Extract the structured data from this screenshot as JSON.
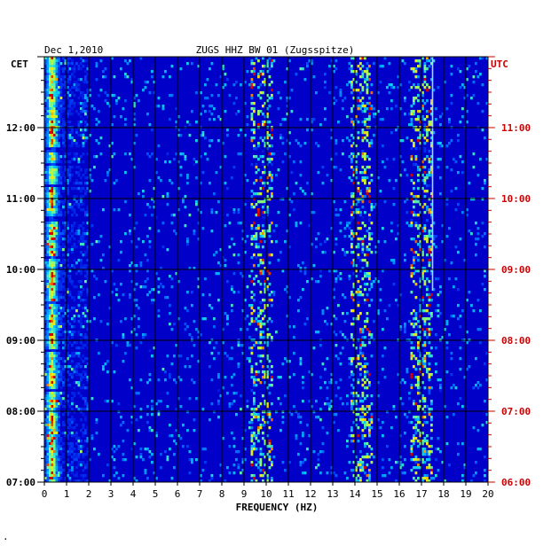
{
  "header": {
    "date": "Dec 1,2010",
    "station": "ZUGS HHZ BW 01 (Zugsspitze)"
  },
  "axes": {
    "left_zone": "CET",
    "right_zone": "UTC",
    "xlabel": "FREQUENCY (HZ)"
  },
  "colors": {
    "background_field": "#0000c8",
    "left_time_labels": "#000000",
    "right_time_labels": "#cc0000",
    "grid": "#000000"
  },
  "footer_mark": "·",
  "chart_data": {
    "type": "heatmap",
    "title": "ZUGS HHZ BW 01 (Zugsspitze)",
    "date": "Dec 1,2010",
    "xlabel": "FREQUENCY (HZ)",
    "x_ticks": [
      "0",
      "1",
      "2",
      "3",
      "4",
      "5",
      "6",
      "7",
      "8",
      "9",
      "10",
      "11",
      "12",
      "13",
      "14",
      "15",
      "16",
      "17",
      "18",
      "19",
      "20"
    ],
    "xlim": [
      0,
      20
    ],
    "y_ticks_cet": [
      "07:00",
      "08:00",
      "09:00",
      "10:00",
      "11:00",
      "12:00"
    ],
    "y_ticks_utc": [
      "06:00",
      "07:00",
      "08:00",
      "09:00",
      "10:00",
      "11:00"
    ],
    "ylim_cet_hours": [
      7.0,
      13.0
    ],
    "grid": true,
    "features": [
      {
        "name": "low-frequency microseism band",
        "freq_hz": [
          0.1,
          0.8
        ],
        "intensity": "high"
      },
      {
        "name": "persistent narrow line",
        "freq_hz": 17.5,
        "intensity": "medium"
      },
      {
        "name": "spectral peak cluster",
        "freq_hz": 9.8,
        "intensity": "medium"
      },
      {
        "name": "spectral peak cluster",
        "freq_hz": 14.3,
        "intensity": "medium"
      },
      {
        "name": "spectral peak cluster",
        "freq_hz": 17.0,
        "intensity": "medium"
      }
    ]
  }
}
